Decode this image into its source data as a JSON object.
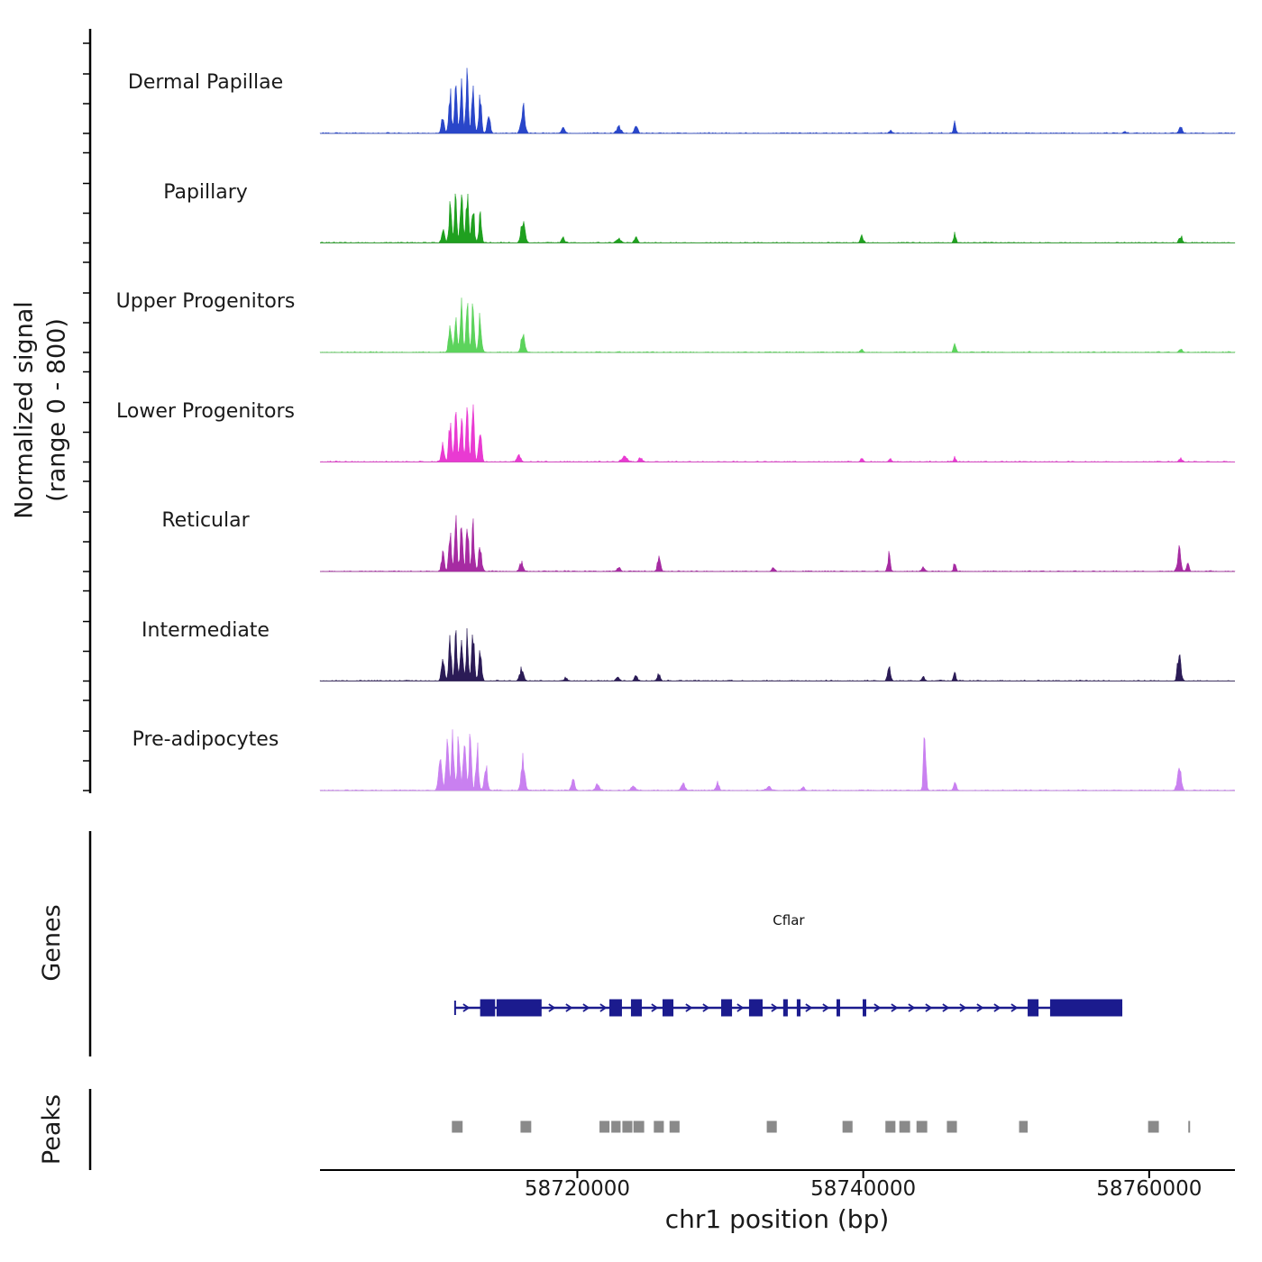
{
  "labels": {
    "y_axis_line1": "Normalized signal",
    "y_axis_line2": "(range 0 - 800)",
    "x_axis": "chr1 position (bp)",
    "genes_section": "Genes",
    "peaks_section": "Peaks"
  },
  "chart_data": {
    "type": "area",
    "description": "Genome browser normalized signal coverage tracks with gene model and called peaks",
    "x_range_bp": [
      58702000,
      58766000
    ],
    "x_ticks": [
      {
        "bp": 58720000,
        "label": "58720000"
      },
      {
        "bp": 58740000,
        "label": "58740000"
      },
      {
        "bp": 58760000,
        "label": "58760000"
      }
    ],
    "y_range": [
      0,
      800
    ],
    "tracks": [
      {
        "name": "Dermal Papillae",
        "color": "#2946c9",
        "peaks": [
          [
            58710600,
            160,
            140
          ],
          [
            58711100,
            400,
            130
          ],
          [
            58711500,
            540,
            120
          ],
          [
            58711900,
            480,
            130
          ],
          [
            58712300,
            620,
            120
          ],
          [
            58712700,
            420,
            130
          ],
          [
            58713200,
            330,
            140
          ],
          [
            58713800,
            180,
            140
          ],
          [
            58716200,
            260,
            180
          ],
          [
            58719000,
            55,
            160
          ],
          [
            58722900,
            65,
            200
          ],
          [
            58724100,
            85,
            150
          ],
          [
            58741900,
            30,
            150
          ],
          [
            58746400,
            105,
            110
          ],
          [
            58758300,
            20,
            150
          ],
          [
            58762200,
            65,
            160
          ]
        ]
      },
      {
        "name": "Papillary",
        "color": "#1fa01f",
        "peaks": [
          [
            58710600,
            130,
            140
          ],
          [
            58711100,
            360,
            130
          ],
          [
            58711500,
            430,
            120
          ],
          [
            58711900,
            410,
            130
          ],
          [
            58712300,
            440,
            120
          ],
          [
            58712700,
            350,
            130
          ],
          [
            58713200,
            260,
            140
          ],
          [
            58716200,
            230,
            180
          ],
          [
            58719000,
            45,
            160
          ],
          [
            58722900,
            45,
            200
          ],
          [
            58724100,
            55,
            150
          ],
          [
            58739900,
            65,
            150
          ],
          [
            58746400,
            85,
            110
          ],
          [
            58762200,
            65,
            160
          ]
        ]
      },
      {
        "name": "Upper Progenitors",
        "color": "#5cd35c",
        "peaks": [
          [
            58711100,
            280,
            140
          ],
          [
            58711500,
            400,
            120
          ],
          [
            58711900,
            430,
            130
          ],
          [
            58712300,
            470,
            120
          ],
          [
            58712700,
            440,
            130
          ],
          [
            58713200,
            340,
            140
          ],
          [
            58716200,
            195,
            170
          ],
          [
            58739900,
            25,
            150
          ],
          [
            58746400,
            85,
            110
          ],
          [
            58762200,
            30,
            160
          ]
        ]
      },
      {
        "name": "Lower Progenitors",
        "color": "#e93ad2",
        "peaks": [
          [
            58710600,
            190,
            140
          ],
          [
            58711100,
            400,
            130
          ],
          [
            58711500,
            490,
            120
          ],
          [
            58711900,
            460,
            130
          ],
          [
            58712300,
            510,
            120
          ],
          [
            58712700,
            470,
            130
          ],
          [
            58713200,
            290,
            140
          ],
          [
            58715900,
            60,
            180
          ],
          [
            58723300,
            55,
            260
          ],
          [
            58724400,
            45,
            160
          ],
          [
            58739900,
            35,
            150
          ],
          [
            58741900,
            25,
            140
          ],
          [
            58746400,
            45,
            110
          ],
          [
            58762200,
            35,
            160
          ]
        ]
      },
      {
        "name": "Reticular",
        "color": "#a62ba2",
        "peaks": [
          [
            58710600,
            170,
            140
          ],
          [
            58711100,
            390,
            130
          ],
          [
            58711500,
            460,
            120
          ],
          [
            58711900,
            430,
            130
          ],
          [
            58712300,
            490,
            120
          ],
          [
            58712700,
            420,
            130
          ],
          [
            58713200,
            270,
            140
          ],
          [
            58716100,
            85,
            180
          ],
          [
            58722900,
            35,
            180
          ],
          [
            58725700,
            125,
            150
          ],
          [
            58733700,
            30,
            150
          ],
          [
            58741800,
            155,
            130
          ],
          [
            58744200,
            40,
            140
          ],
          [
            58746400,
            85,
            110
          ],
          [
            58762100,
            195,
            170
          ],
          [
            58762700,
            90,
            120
          ]
        ]
      },
      {
        "name": "Intermediate",
        "color": "#2b1b56",
        "peaks": [
          [
            58710600,
            240,
            140
          ],
          [
            58711100,
            370,
            130
          ],
          [
            58711500,
            410,
            120
          ],
          [
            58711900,
            390,
            130
          ],
          [
            58712300,
            430,
            120
          ],
          [
            58712700,
            430,
            130
          ],
          [
            58713200,
            280,
            140
          ],
          [
            58716100,
            115,
            180
          ],
          [
            58719200,
            35,
            150
          ],
          [
            58722800,
            45,
            160
          ],
          [
            58724100,
            55,
            150
          ],
          [
            58725700,
            65,
            150
          ],
          [
            58741800,
            165,
            130
          ],
          [
            58744200,
            40,
            140
          ],
          [
            58746400,
            95,
            110
          ],
          [
            58762100,
            310,
            150
          ]
        ]
      },
      {
        "name": "Pre-adipocytes",
        "color": "#c980f0",
        "peaks": [
          [
            58710400,
            260,
            170
          ],
          [
            58710900,
            430,
            140
          ],
          [
            58711300,
            550,
            130
          ],
          [
            58711700,
            500,
            130
          ],
          [
            58712100,
            510,
            130
          ],
          [
            58712500,
            460,
            130
          ],
          [
            58713000,
            400,
            140
          ],
          [
            58713600,
            240,
            150
          ],
          [
            58716200,
            285,
            180
          ],
          [
            58719700,
            115,
            160
          ],
          [
            58721400,
            55,
            200
          ],
          [
            58723900,
            45,
            200
          ],
          [
            58727400,
            60,
            200
          ],
          [
            58729800,
            75,
            150
          ],
          [
            58733400,
            35,
            200
          ],
          [
            58735800,
            30,
            180
          ],
          [
            58744300,
            670,
            110
          ],
          [
            58746400,
            75,
            140
          ],
          [
            58762100,
            230,
            180
          ]
        ]
      }
    ],
    "gene": {
      "name": "Cflar",
      "start": 58711450,
      "end": 58758120,
      "strand": "+",
      "color": "#1b1b8e",
      "exons": [
        [
          58713200,
          58714250
        ],
        [
          58714350,
          58717500
        ],
        [
          58722240,
          58723120
        ],
        [
          58723750,
          58724510
        ],
        [
          58725960,
          58726720
        ],
        [
          58730060,
          58730820
        ],
        [
          58732010,
          58732960
        ],
        [
          58734400,
          58734720
        ],
        [
          58735350,
          58735610
        ],
        [
          58738130,
          58738380
        ],
        [
          58739960,
          58740210
        ],
        [
          58751500,
          58752260
        ],
        [
          58753070,
          58758120
        ]
      ]
    },
    "peak_regions": [
      [
        58711600,
        750
      ],
      [
        58716400,
        750
      ],
      [
        58721900,
        700
      ],
      [
        58722700,
        650
      ],
      [
        58723500,
        700
      ],
      [
        58724300,
        750
      ],
      [
        58725700,
        700
      ],
      [
        58726800,
        700
      ],
      [
        58733600,
        700
      ],
      [
        58738900,
        700
      ],
      [
        58741900,
        700
      ],
      [
        58742900,
        750
      ],
      [
        58744100,
        750
      ],
      [
        58746200,
        700
      ],
      [
        58751200,
        600
      ],
      [
        58760300,
        750
      ],
      [
        58762800,
        120
      ]
    ],
    "peak_color": "#8a8a8a",
    "baseline_color": "#888888",
    "axis_color": "#000000",
    "legend_position": "left-track-labels",
    "grid": false
  }
}
